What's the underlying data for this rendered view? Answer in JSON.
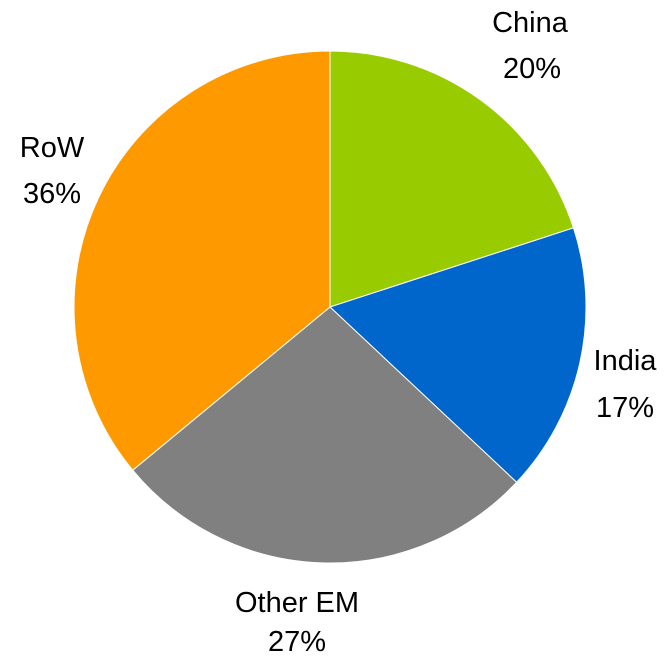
{
  "chart_data": {
    "type": "pie",
    "title": "",
    "slices": [
      {
        "label": "China",
        "value": 20,
        "value_label": "20%",
        "color": "#99cc00"
      },
      {
        "label": "India",
        "value": 17,
        "value_label": "17%",
        "color": "#0066cc"
      },
      {
        "label": "Other EM",
        "value": 27,
        "value_label": "27%",
        "color": "#808080"
      },
      {
        "label": "RoW",
        "value": 36,
        "value_label": "36%",
        "color": "#ff9900"
      }
    ],
    "start": "12 o'clock",
    "direction": "clockwise",
    "legend": "none"
  }
}
